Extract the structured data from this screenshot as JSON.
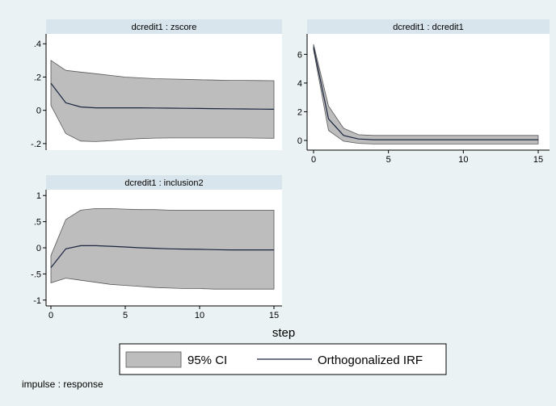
{
  "chart_data": {
    "type": "line",
    "xlabel": "step",
    "note": "impulse : response",
    "legend": {
      "position": "bottom",
      "entries": [
        "95% CI",
        "Orthogonalized IRF"
      ]
    },
    "colors": {
      "background": "#eaf2f3",
      "plot_region": "#ffffff",
      "strip": "#d9e5ec",
      "ci_fill": "#bdbdbd",
      "ci_edge": "#595959",
      "irf_line": "#1a2540"
    },
    "panels": [
      {
        "title": "dcredit1 : zscore",
        "xlim": [
          0,
          15
        ],
        "ylim": [
          -0.22,
          0.44
        ],
        "xticks": [],
        "yticks": [
          -0.2,
          0,
          0.2,
          0.4
        ],
        "ytick_labels": [
          "-.2",
          "0",
          ".2",
          ".4"
        ],
        "steps": [
          0,
          1,
          2,
          3,
          4,
          5,
          6,
          7,
          8,
          9,
          10,
          11,
          12,
          13,
          14,
          15
        ],
        "irf": [
          0.163,
          0.045,
          0.02,
          0.015,
          0.015,
          0.015,
          0.015,
          0.014,
          0.013,
          0.012,
          0.011,
          0.01,
          0.009,
          0.008,
          0.007,
          0.006
        ],
        "lower": [
          0.03,
          -0.14,
          -0.185,
          -0.188,
          -0.183,
          -0.176,
          -0.17,
          -0.167,
          -0.166,
          -0.166,
          -0.166,
          -0.166,
          -0.166,
          -0.166,
          -0.167,
          -0.168
        ],
        "upper": [
          0.3,
          0.24,
          0.23,
          0.22,
          0.21,
          0.2,
          0.195,
          0.19,
          0.188,
          0.186,
          0.184,
          0.182,
          0.18,
          0.18,
          0.179,
          0.178
        ]
      },
      {
        "title": "dcredit1 : dcredit1",
        "xlim": [
          0,
          15
        ],
        "ylim": [
          -0.45,
          7.2
        ],
        "xticks": [
          0,
          5,
          10,
          15
        ],
        "yticks": [
          0,
          2,
          4,
          6
        ],
        "ytick_labels": [
          "0",
          "2",
          "4",
          "6"
        ],
        "steps": [
          0,
          1,
          2,
          3,
          4,
          5,
          6,
          7,
          8,
          9,
          10,
          11,
          12,
          13,
          14,
          15
        ],
        "irf": [
          6.5,
          1.5,
          0.35,
          0.1,
          0.05,
          0.05,
          0.05,
          0.05,
          0.05,
          0.05,
          0.05,
          0.05,
          0.05,
          0.05,
          0.05,
          0.05
        ],
        "lower": [
          6.3,
          0.7,
          -0.05,
          -0.2,
          -0.25,
          -0.25,
          -0.25,
          -0.25,
          -0.25,
          -0.25,
          -0.25,
          -0.25,
          -0.25,
          -0.25,
          -0.25,
          -0.25
        ],
        "upper": [
          6.7,
          2.4,
          0.85,
          0.4,
          0.35,
          0.35,
          0.35,
          0.35,
          0.35,
          0.35,
          0.35,
          0.35,
          0.35,
          0.35,
          0.35,
          0.35
        ]
      },
      {
        "title": "dcredit1 : inclusion2",
        "xlim": [
          0,
          15
        ],
        "ylim": [
          -1.05,
          1.05
        ],
        "xticks": [
          0,
          5,
          10,
          15
        ],
        "yticks": [
          -1,
          -0.5,
          0,
          0.5,
          1
        ],
        "ytick_labels": [
          "-1",
          "-.5",
          "0",
          ".5",
          "1"
        ],
        "steps": [
          0,
          1,
          2,
          3,
          4,
          5,
          6,
          7,
          8,
          9,
          10,
          11,
          12,
          13,
          14,
          15
        ],
        "irf": [
          -0.38,
          -0.02,
          0.04,
          0.04,
          0.03,
          0.015,
          0.0,
          -0.01,
          -0.02,
          -0.025,
          -0.03,
          -0.035,
          -0.04,
          -0.04,
          -0.04,
          -0.04
        ],
        "lower": [
          -0.67,
          -0.58,
          -0.62,
          -0.66,
          -0.7,
          -0.72,
          -0.74,
          -0.76,
          -0.77,
          -0.78,
          -0.78,
          -0.79,
          -0.79,
          -0.79,
          -0.79,
          -0.79
        ],
        "upper": [
          -0.15,
          0.54,
          0.72,
          0.75,
          0.75,
          0.74,
          0.73,
          0.73,
          0.72,
          0.72,
          0.72,
          0.72,
          0.72,
          0.72,
          0.72,
          0.72
        ]
      }
    ]
  }
}
